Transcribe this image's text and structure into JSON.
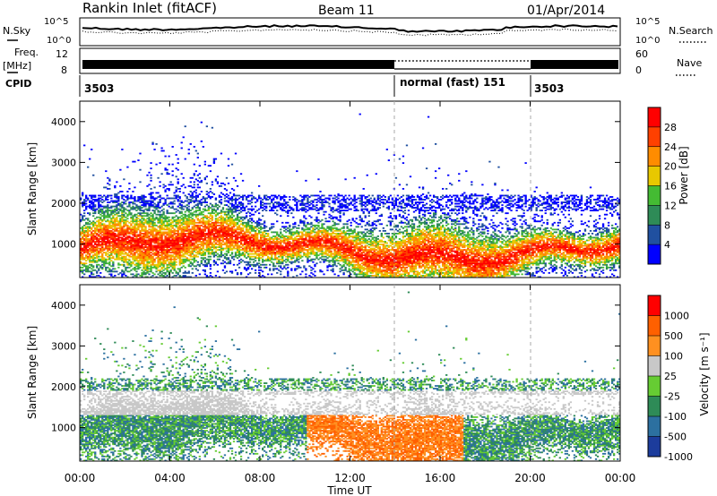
{
  "header": {
    "title": "Rankin Inlet (fitACF)",
    "beam": "Beam 11",
    "date": "01/Apr/2014"
  },
  "panel_labels": {
    "nsky": "N.Sky",
    "nsearch": "N.Search",
    "freq": "Freq.",
    "mhz": "[MHz]",
    "nave": "Nave",
    "cpid": "CPID"
  },
  "chart_data": [
    {
      "type": "line",
      "name": "noise",
      "left_ticks": [
        "10^5",
        "10^0"
      ],
      "right_ticks": [
        "10^5",
        "10^0"
      ],
      "x_range_hours": [
        0,
        24
      ]
    },
    {
      "type": "line",
      "name": "frequency-nave",
      "left_ticks": [
        "12",
        "8"
      ],
      "right_ticks": [
        "60",
        "0"
      ],
      "x_range_hours": [
        0,
        24
      ]
    },
    {
      "type": "table",
      "name": "cpid",
      "segments": [
        {
          "label": "3503",
          "start": 0,
          "end": 14
        },
        {
          "label": "normal (fast) 151",
          "start": 14,
          "end": 20
        },
        {
          "label": "3503",
          "start": 20,
          "end": 24
        }
      ]
    },
    {
      "type": "heatmap",
      "name": "power",
      "ylabel": "Slant Range [km]",
      "yticks": [
        1000,
        2000,
        3000,
        4000
      ],
      "ylim": [
        180,
        4500
      ],
      "xlim": [
        0,
        24
      ],
      "colorbar_label": "Power [dB]",
      "colorbar_ticks": [
        "28",
        "24",
        "20",
        "16",
        "12",
        "8",
        "4"
      ],
      "colors": [
        "#0000ff",
        "#2050a0",
        "#2e8b57",
        "#44bb33",
        "#e8c800",
        "#ff8c00",
        "#ff4000",
        "#ff0000"
      ]
    },
    {
      "type": "heatmap",
      "name": "velocity",
      "ylabel": "Slant Range [km]",
      "yticks": [
        1000,
        2000,
        3000,
        4000
      ],
      "ylim": [
        180,
        4500
      ],
      "xlim": [
        0,
        24
      ],
      "xticks": [
        "00:00",
        "04:00",
        "08:00",
        "12:00",
        "16:00",
        "20:00",
        "00:00"
      ],
      "xlabel": "Time UT",
      "colorbar_label": "Velocity [m s⁻¹]",
      "colorbar_ticks": [
        "1000",
        "500",
        "100",
        "25",
        "-25",
        "-100",
        "-500",
        "-1000"
      ],
      "colors": [
        "#1c3c9c",
        "#2c70a0",
        "#2e8b57",
        "#66cc33",
        "#c8c8c8",
        "#ff9020",
        "#ff6000",
        "#ff0000"
      ]
    }
  ]
}
